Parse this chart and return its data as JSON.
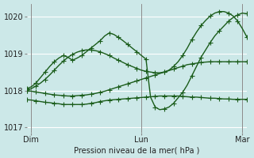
{
  "bg_color": "#cce8e8",
  "grid_color": "#ffffff",
  "line_color": "#1a5c1a",
  "marker": "+",
  "marker_size": 4,
  "linewidth": 1.0,
  "xlabel": "Pression niveau de la mer( hPa )",
  "ylim": [
    1016.85,
    1020.35
  ],
  "yticks": [
    1017,
    1018,
    1019,
    1020
  ],
  "xtick_positions": [
    2,
    50,
    94
  ],
  "xtick_labels": [
    "Dim",
    "Lun",
    "Mar"
  ],
  "vline_positions": [
    2,
    50,
    94
  ],
  "series": {
    "line_flat_bottom": {
      "x": [
        0,
        2,
        4,
        6,
        8,
        10,
        12,
        14,
        16,
        18,
        20,
        22,
        24,
        26,
        28,
        30,
        32,
        34,
        36,
        38,
        40,
        42,
        44,
        46,
        48,
        50,
        52,
        54,
        56,
        58,
        60,
        62,
        64,
        66,
        68,
        70,
        72,
        74,
        76,
        78,
        80,
        82,
        84,
        86,
        88,
        90,
        92,
        94,
        96
      ],
      "y": [
        1017.75,
        1017.74,
        1017.72,
        1017.7,
        1017.68,
        1017.67,
        1017.65,
        1017.64,
        1017.62,
        1017.62,
        1017.62,
        1017.62,
        1017.62,
        1017.63,
        1017.65,
        1017.67,
        1017.7,
        1017.72,
        1017.74,
        1017.75,
        1017.76,
        1017.77,
        1017.78,
        1017.79,
        1017.8,
        1017.81,
        1017.82,
        1017.83,
        1017.84,
        1017.85,
        1017.85,
        1017.85,
        1017.85,
        1017.85,
        1017.84,
        1017.83,
        1017.82,
        1017.82,
        1017.81,
        1017.8,
        1017.79,
        1017.79,
        1017.78,
        1017.77,
        1017.77,
        1017.76,
        1017.76,
        1017.76,
        1017.76
      ]
    },
    "line_slow_rise": {
      "x": [
        0,
        2,
        4,
        6,
        8,
        10,
        12,
        14,
        16,
        18,
        20,
        22,
        24,
        26,
        28,
        30,
        32,
        34,
        36,
        38,
        40,
        42,
        44,
        46,
        48,
        50,
        52,
        54,
        56,
        58,
        60,
        62,
        64,
        66,
        68,
        70,
        72,
        74,
        76,
        78,
        80,
        82,
        84,
        86,
        88,
        90,
        92,
        94,
        96
      ],
      "y": [
        1018.0,
        1017.98,
        1017.96,
        1017.94,
        1017.92,
        1017.9,
        1017.88,
        1017.87,
        1017.86,
        1017.85,
        1017.85,
        1017.86,
        1017.87,
        1017.88,
        1017.9,
        1017.92,
        1017.95,
        1017.98,
        1018.02,
        1018.06,
        1018.1,
        1018.14,
        1018.18,
        1018.22,
        1018.26,
        1018.3,
        1018.34,
        1018.38,
        1018.42,
        1018.46,
        1018.5,
        1018.54,
        1018.58,
        1018.62,
        1018.66,
        1018.7,
        1018.72,
        1018.74,
        1018.76,
        1018.77,
        1018.78,
        1018.78,
        1018.78,
        1018.78,
        1018.78,
        1018.78,
        1018.78,
        1018.78,
        1018.78
      ]
    },
    "line_spike": {
      "x": [
        0,
        2,
        4,
        6,
        8,
        10,
        12,
        14,
        16,
        18,
        20,
        22,
        24,
        26,
        28,
        30,
        32,
        34,
        36,
        38,
        40,
        42,
        44,
        46,
        48,
        50,
        52,
        54,
        56,
        58,
        60,
        62,
        64,
        66,
        68,
        70,
        72,
        74,
        76,
        78,
        80,
        82,
        84,
        86,
        88,
        90,
        92,
        94,
        96
      ],
      "y": [
        1018.05,
        1018.1,
        1018.2,
        1018.35,
        1018.5,
        1018.65,
        1018.78,
        1018.88,
        1018.95,
        1018.9,
        1018.82,
        1018.88,
        1018.95,
        1019.05,
        1019.15,
        1019.25,
        1019.35,
        1019.48,
        1019.56,
        1019.52,
        1019.44,
        1019.35,
        1019.25,
        1019.15,
        1019.05,
        1018.95,
        1018.85,
        1017.82,
        1017.55,
        1017.48,
        1017.5,
        1017.55,
        1017.65,
        1017.8,
        1017.95,
        1018.15,
        1018.4,
        1018.65,
        1018.9,
        1019.1,
        1019.3,
        1019.48,
        1019.62,
        1019.75,
        1019.88,
        1019.98,
        1020.05,
        1020.1,
        1020.08
      ]
    },
    "line_big_curve": {
      "x": [
        0,
        2,
        4,
        6,
        8,
        10,
        12,
        14,
        16,
        18,
        20,
        22,
        24,
        26,
        28,
        30,
        32,
        34,
        36,
        38,
        40,
        42,
        44,
        46,
        48,
        50,
        52,
        54,
        56,
        58,
        60,
        62,
        64,
        66,
        68,
        70,
        72,
        74,
        76,
        78,
        80,
        82,
        84,
        86,
        88,
        90,
        92,
        94,
        96
      ],
      "y": [
        1018.0,
        1018.05,
        1018.12,
        1018.2,
        1018.3,
        1018.42,
        1018.55,
        1018.68,
        1018.8,
        1018.9,
        1018.98,
        1019.04,
        1019.08,
        1019.1,
        1019.1,
        1019.08,
        1019.05,
        1019.0,
        1018.95,
        1018.88,
        1018.82,
        1018.76,
        1018.7,
        1018.65,
        1018.6,
        1018.55,
        1018.52,
        1018.5,
        1018.48,
        1018.48,
        1018.5,
        1018.55,
        1018.65,
        1018.78,
        1018.95,
        1019.15,
        1019.38,
        1019.58,
        1019.76,
        1019.9,
        1020.02,
        1020.1,
        1020.14,
        1020.14,
        1020.1,
        1020.02,
        1019.88,
        1019.68,
        1019.45
      ]
    }
  }
}
